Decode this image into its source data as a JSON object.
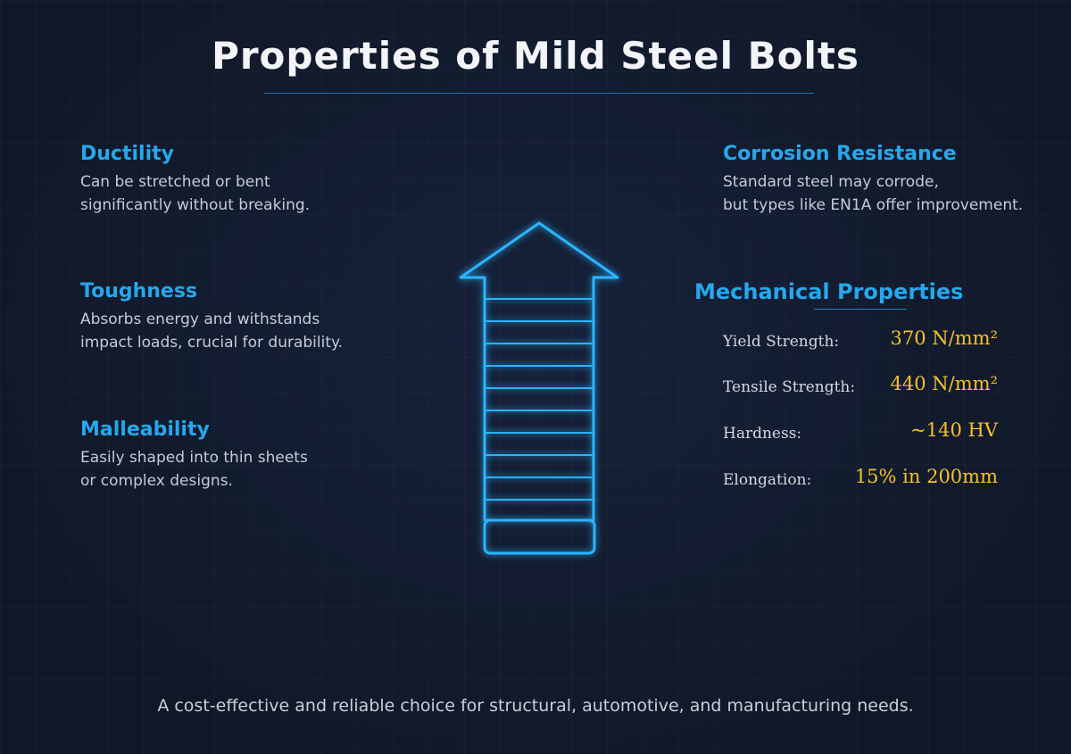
{
  "header": {
    "title": "Properties of Mild Steel Bolts"
  },
  "properties": [
    {
      "title": "Ductility",
      "lines": [
        "Can be stretched or bent",
        "significantly without breaking."
      ]
    },
    {
      "title": "Toughness",
      "lines": [
        "Absorbs energy and withstands",
        "impact loads, crucial for durability."
      ]
    },
    {
      "title": "Malleability",
      "lines": [
        "Easily shaped into thin sheets",
        "or complex designs."
      ]
    },
    {
      "title": "Corrosion Resistance",
      "lines": [
        "Standard steel may corrode,",
        "but types like EN1A offer improvement."
      ]
    }
  ],
  "mechanical": {
    "title": "Mechanical Properties",
    "rows": [
      {
        "label": "Yield Strength:",
        "value": "370 N/mm²"
      },
      {
        "label": "Tensile Strength:",
        "value": "440 N/mm²"
      },
      {
        "label": "Hardness:",
        "value": "~140 HV"
      },
      {
        "label": "Elongation:",
        "value": "15% in 200mm"
      }
    ]
  },
  "footer": {
    "text": "A cost-effective and reliable choice for structural, automotive, and manufacturing needs."
  }
}
